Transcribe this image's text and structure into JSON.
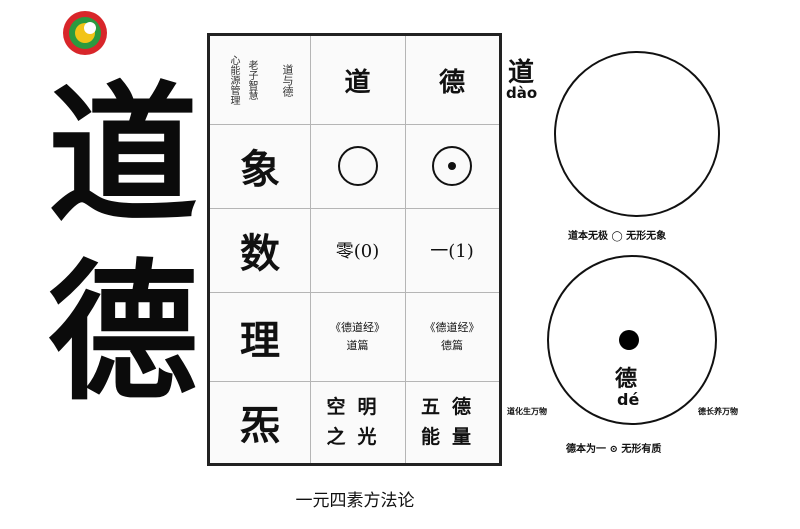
{
  "big_chars": {
    "top": "道",
    "bottom": "德"
  },
  "table": {
    "corner_title": "道与德",
    "corner_sub_1": "老子智慧",
    "corner_sub_2": "心能源管理",
    "col_dao": "道",
    "col_de": "德",
    "rows": [
      {
        "label": "象"
      },
      {
        "label": "数",
        "dao": "零(0)",
        "de": "一(1)"
      },
      {
        "label": "理",
        "dao_book": "《德道经》",
        "dao_book_sub": "道篇",
        "de_book": "《德道经》",
        "de_book_sub": "德篇"
      },
      {
        "label": "炁",
        "dao_line1": "空明",
        "dao_line2": "之光",
        "de_line1": "五德",
        "de_line2": "能量"
      }
    ]
  },
  "caption": "一元四素方法论",
  "dao_label": {
    "char": "道",
    "pinyin": "dào"
  },
  "dao_circle_caption": "道本无极 ◯ 无形无象",
  "de_label": {
    "char": "德",
    "pinyin": "dé"
  },
  "de_left_caption": "道化生万物",
  "de_right_caption": "德长养万物",
  "de_circle_caption": "德本为一 ⊙ 无形有质"
}
